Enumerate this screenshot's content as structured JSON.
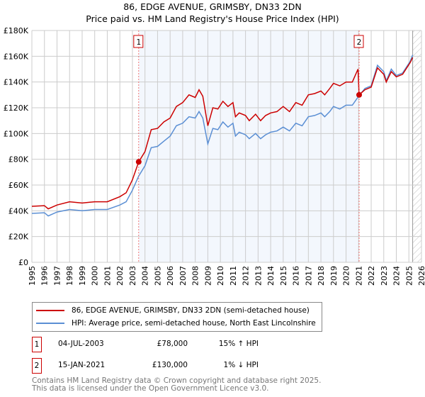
{
  "title": "86, EDGE AVENUE, GRIMSBY, DN33 2DN",
  "subtitle": "Price paid vs. HM Land Registry's House Price Index (HPI)",
  "chart_data": {
    "type": "line",
    "title": "86, EDGE AVENUE, GRIMSBY, DN33 2DN",
    "subtitle": "Price paid vs. HM Land Registry's House Price Index (HPI)",
    "xlim": [
      1995,
      2026
    ],
    "ylim": [
      0,
      180000
    ],
    "x_ticks": [
      "1995",
      "1996",
      "1997",
      "1998",
      "1999",
      "2000",
      "2001",
      "2002",
      "2003",
      "2004",
      "2005",
      "2006",
      "2007",
      "2008",
      "2009",
      "2010",
      "2011",
      "2012",
      "2013",
      "2014",
      "2015",
      "2016",
      "2017",
      "2018",
      "2019",
      "2020",
      "2021",
      "2022",
      "2023",
      "2024",
      "2025",
      "2026"
    ],
    "y_ticks": [
      {
        "v": 0,
        "label": "£0"
      },
      {
        "v": 20000,
        "label": "£20K"
      },
      {
        "v": 40000,
        "label": "£40K"
      },
      {
        "v": 60000,
        "label": "£60K"
      },
      {
        "v": 80000,
        "label": "£80K"
      },
      {
        "v": 100000,
        "label": "£100K"
      },
      {
        "v": 120000,
        "label": "£120K"
      },
      {
        "v": 140000,
        "label": "£140K"
      },
      {
        "v": 160000,
        "label": "£160K"
      },
      {
        "v": 180000,
        "label": "£180K"
      }
    ],
    "grid": true,
    "forecast_hatch_from": 2025.3,
    "series": [
      {
        "name": "86, EDGE AVENUE, GRIMSBY, DN33 2DN (semi-detached house)",
        "color": "#cc0000",
        "x": [
          1995,
          1996,
          1996.3,
          1997,
          1998,
          1999,
          2000,
          2001,
          2002,
          2002.5,
          2003,
          2003.5,
          2004,
          2004.5,
          2005,
          2005.5,
          2006,
          2006.5,
          2007,
          2007.5,
          2008,
          2008.3,
          2008.6,
          2009,
          2009.4,
          2009.8,
          2010.2,
          2010.6,
          2011,
          2011.2,
          2011.5,
          2012,
          2012.3,
          2012.8,
          2013.2,
          2013.6,
          2014,
          2014.5,
          2015,
          2015.5,
          2016,
          2016.5,
          2017,
          2017.5,
          2018,
          2018.3,
          2018.7,
          2019,
          2019.5,
          2020,
          2020.5,
          2020.95,
          2021.04,
          2021.5,
          2022,
          2022.5,
          2023,
          2023.2,
          2023.6,
          2024,
          2024.5,
          2025.1,
          2025.3
        ],
        "y": [
          43500,
          44000,
          41500,
          44500,
          47000,
          46000,
          47000,
          47000,
          51000,
          54000,
          64000,
          78000,
          86000,
          103000,
          104000,
          109000,
          112000,
          121000,
          124000,
          130000,
          128000,
          134000,
          129000,
          106000,
          120000,
          119000,
          125000,
          121000,
          124000,
          113000,
          116000,
          114000,
          110000,
          115000,
          110000,
          114000,
          116000,
          117000,
          121000,
          117000,
          124000,
          122000,
          130000,
          131000,
          133000,
          130000,
          135000,
          139000,
          137000,
          140000,
          140000,
          150000,
          130000,
          134000,
          136000,
          151000,
          146000,
          140000,
          148000,
          144000,
          146000,
          155000,
          159000
        ]
      },
      {
        "name": "HPI: Average price, semi-detached house, North East Lincolnshire",
        "color": "#5b8fd4",
        "x": [
          1995,
          1996,
          1996.3,
          1997,
          1998,
          1999,
          2000,
          2001,
          2002,
          2002.5,
          2003,
          2003.5,
          2004,
          2004.5,
          2005,
          2005.5,
          2006,
          2006.5,
          2007,
          2007.5,
          2008,
          2008.3,
          2008.6,
          2009,
          2009.4,
          2009.8,
          2010.2,
          2010.6,
          2011,
          2011.2,
          2011.5,
          2012,
          2012.3,
          2012.8,
          2013.2,
          2013.6,
          2014,
          2014.5,
          2015,
          2015.5,
          2016,
          2016.5,
          2017,
          2017.5,
          2018,
          2018.3,
          2018.7,
          2019,
          2019.5,
          2020,
          2020.5,
          2021,
          2021.5,
          2022,
          2022.5,
          2023,
          2023.2,
          2023.6,
          2024,
          2024.5,
          2025.1,
          2025.3
        ],
        "y": [
          38000,
          38500,
          36000,
          39000,
          41000,
          40000,
          41000,
          41000,
          44500,
          47000,
          56000,
          67000,
          75000,
          89000,
          90000,
          94000,
          98000,
          106000,
          108000,
          113000,
          112000,
          117000,
          112000,
          92000,
          104000,
          103000,
          109000,
          105000,
          108000,
          98000,
          101000,
          99000,
          96000,
          100000,
          96000,
          99000,
          101000,
          102000,
          105000,
          102000,
          108000,
          106000,
          113000,
          114000,
          116000,
          113000,
          117000,
          121000,
          119000,
          122000,
          122000,
          129000,
          135000,
          137000,
          153000,
          148000,
          141000,
          150000,
          145000,
          147000,
          156000,
          161000
        ]
      }
    ],
    "sales": [
      {
        "label": "1",
        "x": 2003.5,
        "y": 78000
      },
      {
        "label": "2",
        "x": 2021.04,
        "y": 130000
      }
    ]
  },
  "legend": {
    "items": [
      "86, EDGE AVENUE, GRIMSBY, DN33 2DN (semi-detached house)",
      "HPI: Average price, semi-detached house, North East Lincolnshire"
    ]
  },
  "transactions": [
    {
      "num": "1",
      "date": "04-JUL-2003",
      "price": "£78,000",
      "hpi": "15% ↑ HPI"
    },
    {
      "num": "2",
      "date": "15-JAN-2021",
      "price": "£130,000",
      "hpi": "1% ↓ HPI"
    }
  ],
  "footer": [
    "Contains HM Land Registry data © Crown copyright and database right 2025.",
    "This data is licensed under the Open Government Licence v3.0."
  ]
}
